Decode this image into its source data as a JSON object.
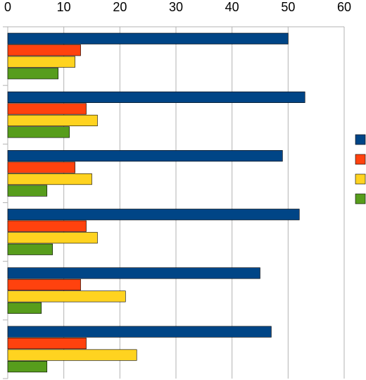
{
  "chart_data": {
    "type": "bar",
    "orientation": "horizontal",
    "title": "",
    "xlabel": "",
    "ylabel": "",
    "xlim": [
      0,
      60
    ],
    "x_ticks": [
      "0",
      "10",
      "20",
      "30",
      "40",
      "50",
      "60"
    ],
    "x_axis_position": "top",
    "grid": "vertical",
    "legend": "right",
    "categories": [
      "",
      "",
      "",
      "",
      "",
      ""
    ],
    "series": [
      {
        "color": "#004586",
        "values": [
          50,
          53,
          49,
          52,
          45,
          47
        ]
      },
      {
        "color": "#ff420e",
        "values": [
          13,
          14,
          12,
          14,
          13,
          14
        ]
      },
      {
        "color": "#ffd320",
        "values": [
          12,
          16,
          15,
          16,
          21,
          23
        ]
      },
      {
        "color": "#579d1c",
        "values": [
          9,
          11,
          7,
          8,
          6,
          7
        ]
      }
    ]
  }
}
